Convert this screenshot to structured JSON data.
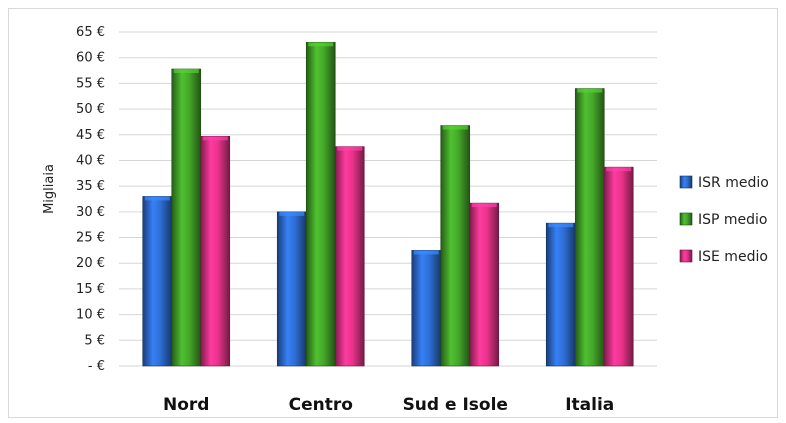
{
  "chart_data": {
    "type": "bar",
    "ylabel": "Migliaia",
    "ylim": [
      0,
      65
    ],
    "yticks": [
      "-  €",
      "5 €",
      "10 €",
      "15 €",
      "20 €",
      "25 €",
      "30 €",
      "35 €",
      "40 €",
      "45 €",
      "50 €",
      "55 €",
      "60 €",
      "65 €"
    ],
    "categories": [
      "Nord",
      "Centro",
      "Sud e Isole",
      "Italia"
    ],
    "series": [
      {
        "name": "ISR medio",
        "values": [
          33,
          30,
          22.5,
          27.8
        ],
        "color": "#2f6fd6"
      },
      {
        "name": "ISP medio",
        "values": [
          57.8,
          63,
          46.8,
          54
        ],
        "color": "#45a82a"
      },
      {
        "name": "ISE medio",
        "values": [
          44.7,
          42.7,
          31.7,
          38.7
        ],
        "color": "#e8338a"
      }
    ],
    "grid": true,
    "legend_position": "right"
  }
}
